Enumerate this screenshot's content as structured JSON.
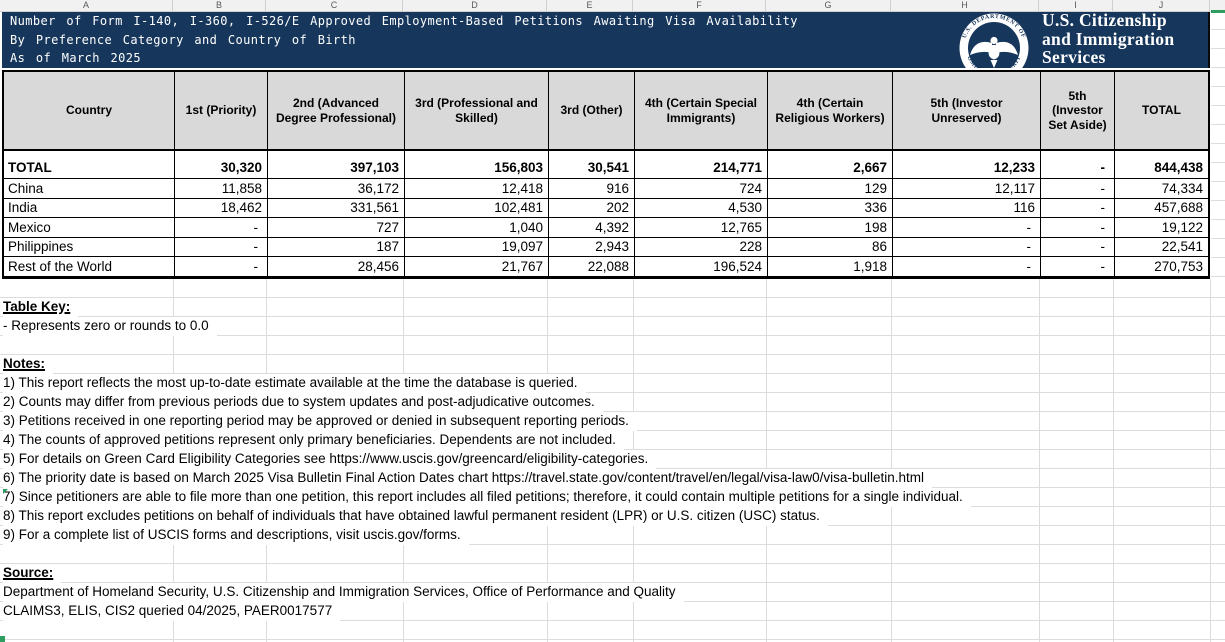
{
  "colors": {
    "banner_blue": "#16365C",
    "header_gray": "#D9D9D9",
    "table_border": "#000000",
    "grid_line": "#DCDCDC",
    "selection_green": "#2E9D5F"
  },
  "spreadsheet": {
    "column_letters": [
      "A",
      "B",
      "C",
      "D",
      "E",
      "F",
      "G",
      "H",
      "I",
      "J"
    ]
  },
  "banner": {
    "title_line_1": "Number of Form I-140, I-360, I-526/E Approved Employment-Based Petitions Awaiting Visa Availability",
    "title_line_2": "By Preference Category and Country of Birth",
    "title_line_3": "As of March 2025",
    "logo": {
      "agency_line_1": "U.S. Citizenship",
      "agency_line_2": "and Immigration",
      "agency_line_3": "Services",
      "seal_text_top": "U.S. DEPARTMENT OF",
      "seal_text_bottom": "HOMELAND SECURITY"
    }
  },
  "table": {
    "headers": [
      "Country",
      "1st (Priority)",
      "2nd (Advanced Degree Professional)",
      "3rd (Professional and Skilled)",
      "3rd (Other)",
      "4th (Certain Special Immigrants)",
      "4th (Certain Religious Workers)",
      "5th (Investor Unreserved)",
      "5th (Investor Set Aside)",
      "TOTAL"
    ],
    "rows": [
      {
        "label": "TOTAL",
        "bold": true,
        "values": [
          "30,320",
          "397,103",
          "156,803",
          "30,541",
          "214,771",
          "2,667",
          "12,233",
          "-",
          "844,438"
        ]
      },
      {
        "label": "China",
        "bold": false,
        "values": [
          "11,858",
          "36,172",
          "12,418",
          "916",
          "724",
          "129",
          "12,117",
          "-",
          "74,334"
        ]
      },
      {
        "label": "India",
        "bold": false,
        "values": [
          "18,462",
          "331,561",
          "102,481",
          "202",
          "4,530",
          "336",
          "116",
          "-",
          "457,688"
        ]
      },
      {
        "label": "Mexico",
        "bold": false,
        "values": [
          "-",
          "727",
          "1,040",
          "4,392",
          "12,765",
          "198",
          "-",
          "-",
          "19,122"
        ]
      },
      {
        "label": "Philippines",
        "bold": false,
        "values": [
          "-",
          "187",
          "19,097",
          "2,943",
          "228",
          "86",
          "-",
          "-",
          "22,541"
        ]
      },
      {
        "label": "Rest of the World",
        "bold": false,
        "values": [
          "-",
          "28,456",
          "21,767",
          "22,088",
          "196,524",
          "1,918",
          "-",
          "-",
          "270,753"
        ]
      }
    ]
  },
  "table_key": {
    "heading": "Table Key:",
    "items": [
      "- Represents zero or rounds to 0.0"
    ]
  },
  "notes": {
    "heading": "Notes:",
    "items": [
      "1) This report reflects the most up-to-date estimate available at the time the database is queried.",
      "2) Counts may differ from previous periods due to system updates and post-adjudicative outcomes.",
      "3) Petitions received in one reporting period may be approved or denied in subsequent reporting periods.",
      "4) The counts of approved petitions represent only primary beneficiaries. Dependents are not included.",
      "5) For details on Green Card Eligibility Categories see https://www.uscis.gov/greencard/eligibility-categories.",
      "6) The priority date is based on March 2025 Visa Bulletin Final Action Dates chart https://travel.state.gov/content/travel/en/legal/visa-law0/visa-bulletin.html",
      "7) Since petitioners are able to file more than one petition, this report includes all filed petitions; therefore, it could contain multiple petitions for a single individual.",
      "8) This report excludes petitions on behalf of individuals that have obtained lawful permanent resident (LPR) or U.S. citizen (USC) status.",
      "9) For a complete list of USCIS forms and descriptions, visit uscis.gov/forms."
    ]
  },
  "source": {
    "heading": "Source:",
    "lines": [
      "Department of Homeland Security, U.S. Citizenship and Immigration Services, Office of Performance and Quality",
      "CLAIMS3, ELIS, CIS2 queried 04/2025, PAER0017577"
    ]
  }
}
